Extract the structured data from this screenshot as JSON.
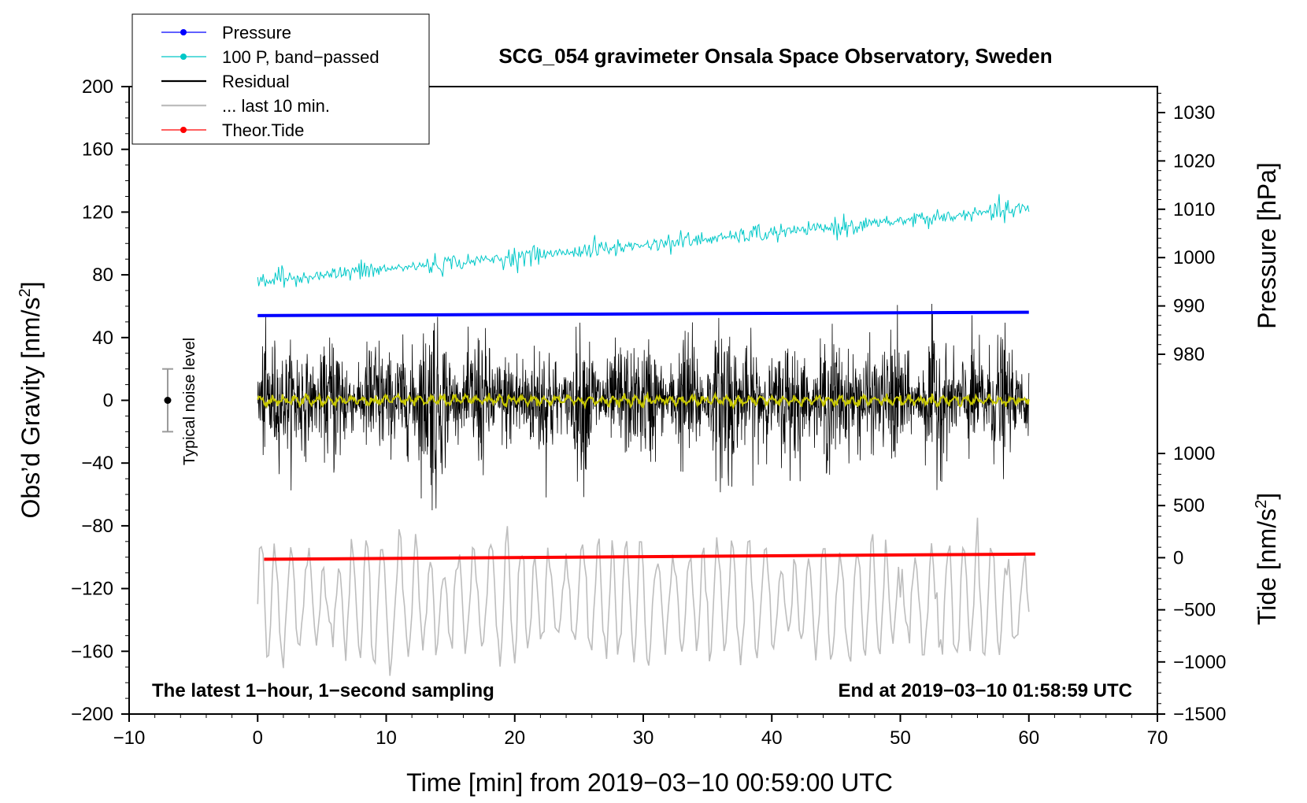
{
  "chart_data": {
    "type": "line",
    "title": "SCG_054 gravimeter Onsala Space Observatory, Sweden",
    "xlabel": "Time [min] from 2019−03−10 00:59:00 UTC",
    "ylabel_left_main": "Obs’d Gravity [nm/s",
    "ylabel_left_sup": "2",
    "ylabel_left_close": "]",
    "ylabel_right_top": "Pressure [hPa]",
    "ylabel_right_bottom_main": "Tide [nm/s",
    "ylabel_right_bottom_sup": "2",
    "ylabel_right_bottom_close": "]",
    "xlim": [
      -10,
      70
    ],
    "ylim": [
      -200,
      200
    ],
    "pressure_axis_range": [
      975,
      1035
    ],
    "tide_axis_range": [
      -1500,
      1000
    ],
    "x_ticks": [
      "−10",
      "0",
      "10",
      "20",
      "30",
      "40",
      "50",
      "60",
      "70"
    ],
    "y_ticks": [
      "−200",
      "−160",
      "−120",
      "−80",
      "−40",
      "0",
      "40",
      "80",
      "120",
      "160",
      "200"
    ],
    "pressure_ticks": [
      "980",
      "990",
      "1000",
      "1010",
      "1020",
      "1030"
    ],
    "tide_ticks": [
      "−1500",
      "−1000",
      "−500",
      "0",
      "500",
      "1000"
    ],
    "annotation_left": "The latest 1−hour, 1−second sampling",
    "annotation_right": "End at 2019−03−10 01:58:59 UTC",
    "noise_label": "Typical noise level",
    "noise_bar": {
      "x": -7,
      "center": 0,
      "halfwidth": 20
    },
    "legend": [
      {
        "label": "Pressure",
        "color": "#0000ff",
        "marker": true
      },
      {
        "label": "100 P, band−passed",
        "color": "#00c8c8",
        "marker": true
      },
      {
        "label": "Residual",
        "color": "#000000",
        "marker": false
      },
      {
        "label": "... last 10 min.",
        "color": "#bdbdbd",
        "marker": false
      },
      {
        "label": "Theor.Tide",
        "color": "#ff0000",
        "marker": true
      }
    ],
    "series": [
      {
        "name": "Pressure",
        "axis": "pressure",
        "color": "#0000ff",
        "x_range": [
          0,
          60
        ],
        "y_start": 988.0,
        "y_end": 988.7
      },
      {
        "name": "100 P, band−passed",
        "axis": "gravity",
        "color": "#00c8c8",
        "x_range": [
          0,
          60
        ],
        "y_start": 76,
        "y_end": 122,
        "jitter": 3.5
      },
      {
        "name": "Residual",
        "axis": "gravity",
        "color": "#000000",
        "x_range": [
          0,
          60
        ],
        "envelope": 32,
        "min": -85,
        "max": 76
      },
      {
        "name": "Residual (smoothed)",
        "axis": "gravity",
        "color": "#c8c800",
        "x_range": [
          0,
          60
        ],
        "y_mean": 0,
        "amplitude": 2
      },
      {
        "name": "... last 10 min.",
        "axis": "gravity",
        "color": "#bdbdbd",
        "x_range": [
          0,
          60
        ],
        "y_center": -128,
        "amplitude": 38
      },
      {
        "name": "Theor.Tide",
        "axis": "tide",
        "color": "#ff0000",
        "x_range": [
          0.5,
          60.5
        ],
        "y_start": -15,
        "y_end": 35
      }
    ]
  }
}
